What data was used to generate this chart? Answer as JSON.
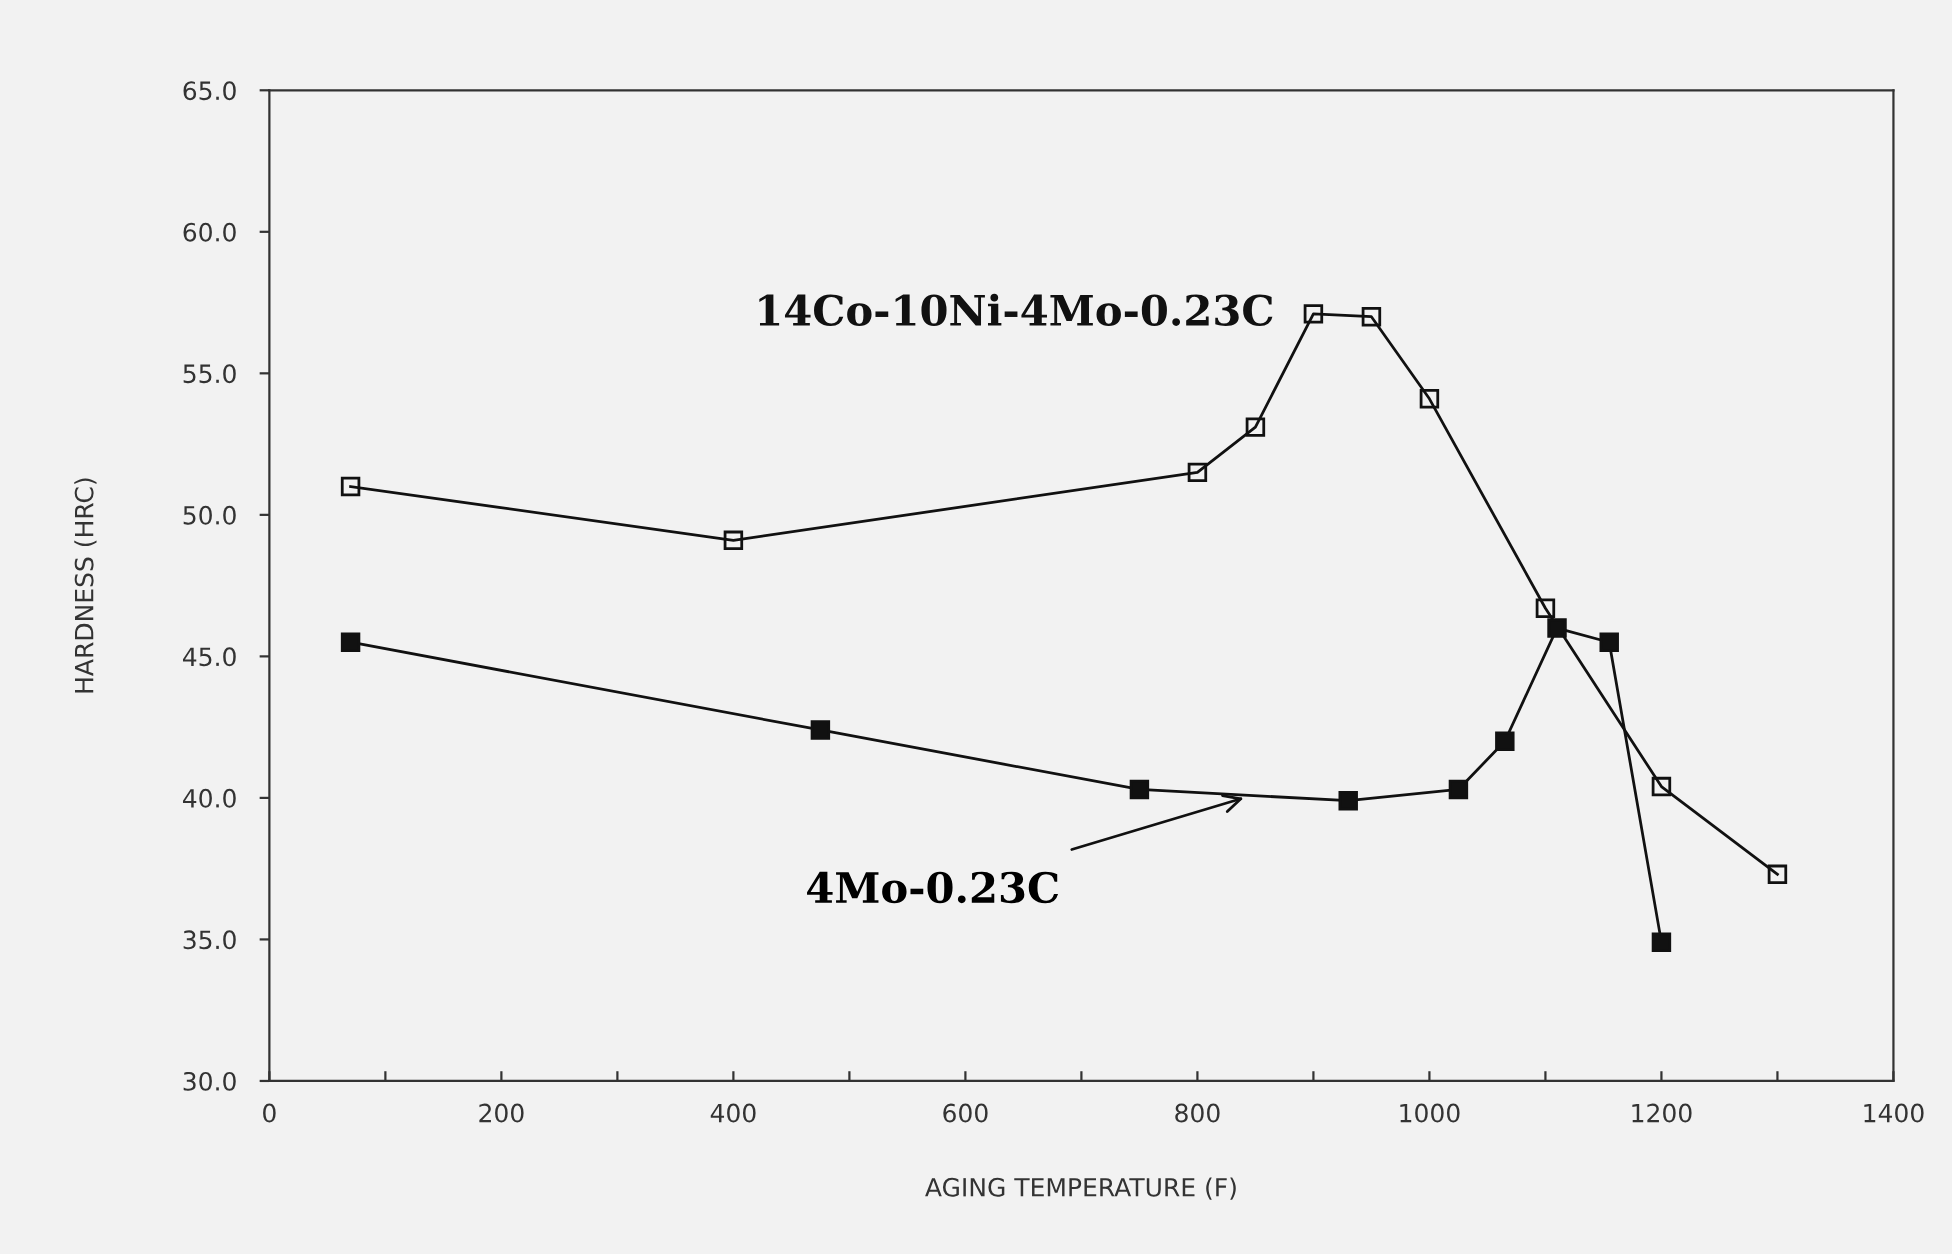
{
  "chart_data": {
    "type": "line",
    "xlabel": "AGING TEMPERATURE (F)",
    "ylabel": "HARDNESS (HRC)",
    "series": [
      {
        "name": "14Co-10Ni-4Mo-0.23C",
        "color": "#111111",
        "x": [
          70,
          400,
          800,
          850,
          900,
          950,
          1000,
          1100,
          1200,
          1300
        ],
        "values": [
          51.0,
          49.1,
          51.5,
          53.1,
          57.1,
          57.0,
          54.1,
          46.7,
          40.4,
          37.3
        ]
      },
      {
        "name": "4Mo-0.23C",
        "color": "#111111",
        "x": [
          70,
          475,
          750,
          930,
          1025,
          1065,
          1110,
          1155,
          1200
        ],
        "values": [
          45.5,
          42.4,
          40.3,
          39.9,
          40.3,
          42.0,
          46.0,
          45.5,
          34.9
        ]
      }
    ],
    "marker": "square",
    "line_style": "solid",
    "grid": false,
    "xlim": [
      0,
      1400
    ],
    "xticks": [
      0,
      {
        "value": 100,
        "label": null
      },
      200,
      {
        "value": 300,
        "label": null
      },
      400,
      {
        "value": 500,
        "label": null
      },
      600,
      {
        "value": 700,
        "label": null
      },
      800,
      {
        "value": 900,
        "label": null
      },
      1000,
      {
        "value": 1100,
        "label": null
      },
      1200,
      {
        "value": 1300,
        "label": null
      },
      1400
    ],
    "ylim": [
      30,
      65
    ],
    "yticks": [
      {
        "value": 30,
        "label": "30.0"
      },
      {
        "value": 35,
        "label": "35.0"
      },
      {
        "value": 40,
        "label": "40.0"
      },
      {
        "value": 45,
        "label": "45.0"
      },
      {
        "value": 50,
        "label": "50.0"
      },
      {
        "value": 55,
        "label": "55.0"
      },
      {
        "value": 60,
        "label": "60.0"
      },
      {
        "value": 65,
        "label": "65.0"
      }
    ]
  }
}
